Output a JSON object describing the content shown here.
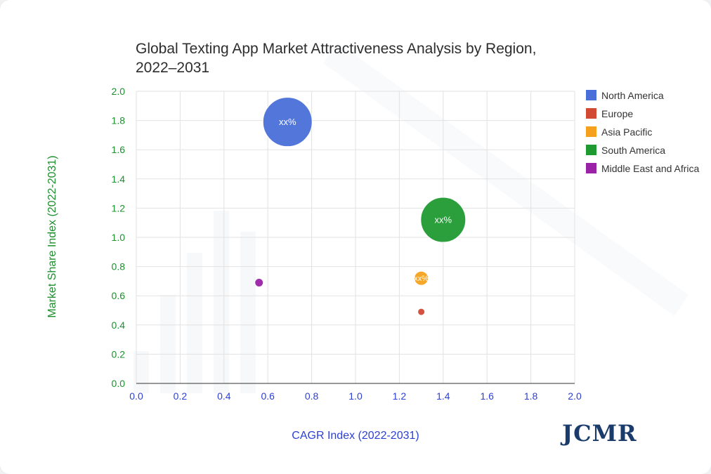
{
  "page": {
    "brand": "JCMR"
  },
  "chart_data": {
    "type": "bubble",
    "title": [
      "Global Texting App Market Attractiveness Analysis by Region,",
      "2022–2031"
    ],
    "xlabel": "CAGR Index (2022-2031)",
    "ylabel": "Market Share Index (2022-2031)",
    "xlim": [
      0,
      2
    ],
    "ylim": [
      0,
      2
    ],
    "x_ticks": [
      "0.0",
      "0.2",
      "0.4",
      "0.6",
      "0.8",
      "1.0",
      "1.2",
      "1.4",
      "1.6",
      "1.8",
      "2.0"
    ],
    "y_ticks": [
      "0.0",
      "0.2",
      "0.4",
      "0.6",
      "0.8",
      "1.0",
      "1.2",
      "1.4",
      "1.6",
      "1.8",
      "2.0"
    ],
    "grid": true,
    "legend_position": "right",
    "colors": {
      "x_axis_text": "#2b3fd6",
      "y_axis_text": "#1d8f2e"
    },
    "series": [
      {
        "name": "North America",
        "x": 0.69,
        "y": 1.79,
        "size": 35,
        "color": "#4a6fd8",
        "label": "xx%"
      },
      {
        "name": "Europe",
        "x": 1.3,
        "y": 0.49,
        "size": 5,
        "color": "#d24a34",
        "label": ""
      },
      {
        "name": "Asia Pacific",
        "x": 1.3,
        "y": 0.72,
        "size": 10,
        "color": "#f5a11e",
        "label": "xx%"
      },
      {
        "name": "South America",
        "x": 1.4,
        "y": 1.12,
        "size": 32,
        "color": "#1f9a31",
        "label": "xx%"
      },
      {
        "name": "Middle East and Africa",
        "x": 0.56,
        "y": 0.69,
        "size": 6,
        "color": "#9b22a6",
        "label": ""
      }
    ]
  }
}
